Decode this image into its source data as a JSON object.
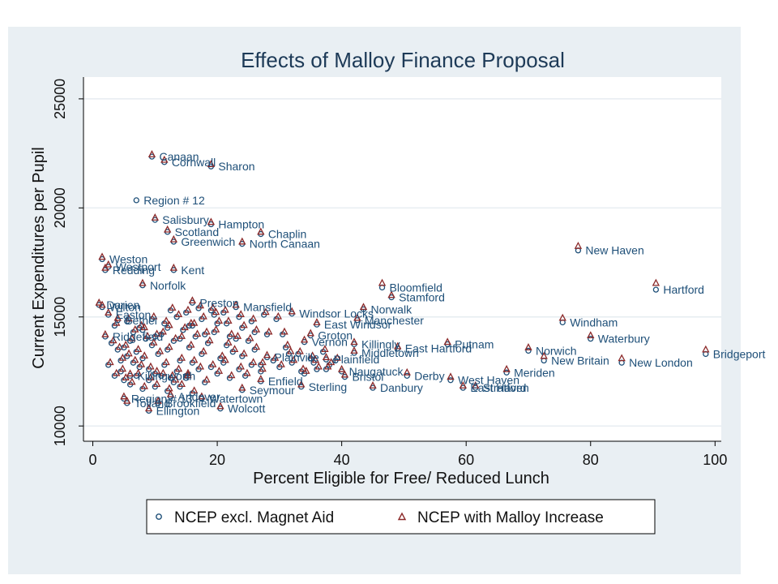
{
  "chart_data": {
    "type": "scatter",
    "title": "Effects of Malloy Finance Proposal",
    "xlabel": "Percent Eligible for Free/ Reduced Lunch",
    "ylabel": "Current Expenditures per Pupil",
    "xlim": [
      -1.5,
      101
    ],
    "ylim": [
      9300,
      26000
    ],
    "xticks": [
      0,
      20,
      40,
      60,
      80,
      100
    ],
    "yticks": [
      10000,
      15000,
      20000,
      25000
    ],
    "grid": "horizontal",
    "legend_position": "bottom",
    "colors": {
      "panel_bg": "#e9eff3",
      "plot_bg": "#ffffff",
      "series1": "#1e4f78",
      "series2": "#8c2a2a",
      "label": "#1e4f78",
      "title": "#1d3a57"
    },
    "series": [
      {
        "name": "NCEP excl. Magnet Aid",
        "marker": "circle"
      },
      {
        "name": "NCEP with Malloy Increase",
        "marker": "triangle"
      }
    ],
    "labeled_points": [
      {
        "label": "Canaan",
        "x": 9.5,
        "y1": 22350,
        "y2": 22450
      },
      {
        "label": "Cornwall",
        "x": 11.5,
        "y1": 22100,
        "y2": 22200
      },
      {
        "label": "Sharon",
        "x": 19,
        "y1": 21900,
        "y2": 22000
      },
      {
        "label": "Region # 12",
        "x": 7,
        "y1": 20350,
        "y2": null
      },
      {
        "label": "Salisbury",
        "x": 10,
        "y1": 19450,
        "y2": 19550
      },
      {
        "label": "Hampton",
        "x": 19,
        "y1": 19250,
        "y2": 19350
      },
      {
        "label": "Scotland",
        "x": 12,
        "y1": 18900,
        "y2": 19000
      },
      {
        "label": "Chaplin",
        "x": 27,
        "y1": 18800,
        "y2": 18900
      },
      {
        "label": "Greenwich",
        "x": 13,
        "y1": 18450,
        "y2": 18550
      },
      {
        "label": "North Canaan",
        "x": 24,
        "y1": 18350,
        "y2": 18450
      },
      {
        "label": "New Haven",
        "x": 78,
        "y1": 18050,
        "y2": 18250
      },
      {
        "label": "Weston",
        "x": 1.5,
        "y1": 17650,
        "y2": 17750
      },
      {
        "label": "Westport",
        "x": 2.5,
        "y1": 17300,
        "y2": 17400
      },
      {
        "label": "Redding",
        "x": 2,
        "y1": 17150,
        "y2": 17250
      },
      {
        "label": "Kent",
        "x": 13,
        "y1": 17150,
        "y2": 17250
      },
      {
        "label": "Norfolk",
        "x": 8,
        "y1": 16450,
        "y2": 16550
      },
      {
        "label": "Bloomfield",
        "x": 46.5,
        "y1": 16350,
        "y2": 16550
      },
      {
        "label": "Hartford",
        "x": 90.5,
        "y1": 16250,
        "y2": 16550
      },
      {
        "label": "Stamford",
        "x": 48,
        "y1": 15900,
        "y2": 16000
      },
      {
        "label": "Darien",
        "x": 1,
        "y1": 15550,
        "y2": 15650
      },
      {
        "label": "Wilton",
        "x": 1.5,
        "y1": 15450,
        "y2": 15550
      },
      {
        "label": "Preston",
        "x": 16,
        "y1": 15650,
        "y2": 15750
      },
      {
        "label": "Mansfield",
        "x": 23,
        "y1": 15450,
        "y2": 15550
      },
      {
        "label": "Norwalk",
        "x": 43.5,
        "y1": 15350,
        "y2": 15450
      },
      {
        "label": "Windsor Locks",
        "x": 32,
        "y1": 15150,
        "y2": 15250
      },
      {
        "label": "Manchester",
        "x": 42.5,
        "y1": 14850,
        "y2": 14950
      },
      {
        "label": "East Windsor",
        "x": 36,
        "y1": 14650,
        "y2": 14750
      },
      {
        "label": "Windham",
        "x": 75.5,
        "y1": 14750,
        "y2": 14950
      },
      {
        "label": "Waterbury",
        "x": 80,
        "y1": 14000,
        "y2": 14150
      },
      {
        "label": "Groton",
        "x": 35,
        "y1": 14150,
        "y2": 14250
      },
      {
        "label": "Vernon",
        "x": 34,
        "y1": 13850,
        "y2": 13950
      },
      {
        "label": "Killingly",
        "x": 42,
        "y1": 13750,
        "y2": 13850
      },
      {
        "label": "Putnam",
        "x": 57,
        "y1": 13750,
        "y2": 13850
      },
      {
        "label": "East Hartford",
        "x": 49,
        "y1": 13550,
        "y2": 13650
      },
      {
        "label": "Middletown",
        "x": 42,
        "y1": 13350,
        "y2": 13450
      },
      {
        "label": "Norwich",
        "x": 70,
        "y1": 13450,
        "y2": 13600
      },
      {
        "label": "New Britain",
        "x": 72.5,
        "y1": 13000,
        "y2": 13200
      },
      {
        "label": "New London",
        "x": 85,
        "y1": 12900,
        "y2": 13100
      },
      {
        "label": "Bridgeport",
        "x": 98.5,
        "y1": 13300,
        "y2": 13500
      },
      {
        "label": "Meriden",
        "x": 66.5,
        "y1": 12450,
        "y2": 12600
      },
      {
        "label": "Naugatuck",
        "x": 40,
        "y1": 12500,
        "y2": 12600
      },
      {
        "label": "Bristol",
        "x": 40.5,
        "y1": 12250,
        "y2": 12350
      },
      {
        "label": "Derby",
        "x": 50.5,
        "y1": 12300,
        "y2": 12450
      },
      {
        "label": "West Haven",
        "x": 57.5,
        "y1": 12100,
        "y2": 12250
      },
      {
        "label": "Danbury",
        "x": 45,
        "y1": 11750,
        "y2": 11850
      },
      {
        "label": "East Haven",
        "x": 59.5,
        "y1": 11750,
        "y2": 11850
      },
      {
        "label": "Stratford",
        "x": 61.5,
        "y1": 11750,
        "y2": 11850
      },
      {
        "label": "Sterling",
        "x": 33.5,
        "y1": 11800,
        "y2": 11900
      },
      {
        "label": "Seymour",
        "x": 24,
        "y1": 11650,
        "y2": 11750
      },
      {
        "label": "Watertown",
        "x": 17.5,
        "y1": 11250,
        "y2": 11350
      },
      {
        "label": "Wolcott",
        "x": 20.5,
        "y1": 10800,
        "y2": 10900
      },
      {
        "label": "Ellington",
        "x": 9,
        "y1": 10700,
        "y2": 10800
      },
      {
        "label": "Region # 13",
        "x": 5,
        "y1": 11250,
        "y2": 11350
      },
      {
        "label": "Tolland",
        "x": 5.5,
        "y1": 11050,
        "y2": 11150
      },
      {
        "label": "Brookfield",
        "x": 10.5,
        "y1": 11050,
        "y2": 11150
      },
      {
        "label": "Andover",
        "x": 12.5,
        "y1": 11350,
        "y2": 11450
      },
      {
        "label": "Ridgefield",
        "x": 2,
        "y1": 14100,
        "y2": 14200
      },
      {
        "label": "Easton",
        "x": 2.5,
        "y1": 15100,
        "y2": 15200
      },
      {
        "label": "Bethel",
        "x": 4,
        "y1": 14850,
        "y2": 14950
      },
      {
        "label": "Plainville",
        "x": 28,
        "y1": 13150,
        "y2": 13250
      },
      {
        "label": "Plainfield",
        "x": 37.5,
        "y1": 13050,
        "y2": 13150
      },
      {
        "label": "Enfield",
        "x": 27,
        "y1": 12050,
        "y2": 12150
      },
      {
        "label": "Killingworth",
        "x": 6,
        "y1": 12300,
        "y2": 12400
      }
    ],
    "cluster_points": [
      [
        3,
        13800
      ],
      [
        4,
        13500
      ],
      [
        5,
        13600
      ],
      [
        5.5,
        13200
      ],
      [
        6,
        13900
      ],
      [
        6.5,
        12900
      ],
      [
        7,
        13400
      ],
      [
        7.5,
        12700
      ],
      [
        8,
        13100
      ],
      [
        8.5,
        14000
      ],
      [
        9,
        12600
      ],
      [
        9.5,
        13700
      ],
      [
        10,
        12400
      ],
      [
        10.5,
        13300
      ],
      [
        11,
        14200
      ],
      [
        11.5,
        12800
      ],
      [
        12,
        13500
      ],
      [
        12.5,
        12200
      ],
      [
        13,
        13900
      ],
      [
        13.5,
        12500
      ],
      [
        14,
        13000
      ],
      [
        14.5,
        14400
      ],
      [
        15,
        12300
      ],
      [
        15.5,
        13600
      ],
      [
        16,
        12900
      ],
      [
        16.5,
        14100
      ],
      [
        17,
        12600
      ],
      [
        17.5,
        13300
      ],
      [
        18,
        12000
      ],
      [
        18.5,
        13800
      ],
      [
        19,
        12700
      ],
      [
        19.5,
        14300
      ],
      [
        20,
        12400
      ],
      [
        20.5,
        13100
      ],
      [
        21,
        12900
      ],
      [
        21.5,
        13700
      ],
      [
        22,
        12200
      ],
      [
        22.5,
        13400
      ],
      [
        23,
        14000
      ],
      [
        23.5,
        12600
      ],
      [
        24,
        13200
      ],
      [
        24.5,
        12300
      ],
      [
        25,
        13900
      ],
      [
        25.5,
        12800
      ],
      [
        26,
        13500
      ],
      [
        27,
        12500
      ],
      [
        28,
        14200
      ],
      [
        29,
        13000
      ],
      [
        30,
        12700
      ],
      [
        31,
        13600
      ],
      [
        32,
        12900
      ],
      [
        33,
        13300
      ],
      [
        34,
        12400
      ],
      [
        35,
        13100
      ],
      [
        36,
        12600
      ],
      [
        37,
        13400
      ],
      [
        38,
        12800
      ],
      [
        39,
        13000
      ],
      [
        4.5,
        12500
      ],
      [
        5,
        12100
      ],
      [
        6,
        11900
      ],
      [
        7,
        12300
      ],
      [
        8,
        11700
      ],
      [
        9,
        12100
      ],
      [
        10,
        11800
      ],
      [
        11,
        12300
      ],
      [
        12,
        11600
      ],
      [
        13,
        12000
      ],
      [
        14,
        11800
      ],
      [
        15,
        12200
      ],
      [
        16,
        11500
      ],
      [
        3.5,
        14600
      ],
      [
        5.5,
        14800
      ],
      [
        7.5,
        14500
      ],
      [
        9.5,
        14900
      ],
      [
        11.5,
        14700
      ],
      [
        13.5,
        15000
      ],
      [
        15.5,
        14600
      ],
      [
        17.5,
        14900
      ],
      [
        19.5,
        15100
      ],
      [
        21.5,
        14700
      ],
      [
        23.5,
        15000
      ],
      [
        25.5,
        14800
      ],
      [
        27.5,
        15100
      ],
      [
        29.5,
        14900
      ],
      [
        8,
        14400
      ],
      [
        10,
        14100
      ],
      [
        12,
        14500
      ],
      [
        14,
        14000
      ],
      [
        16,
        14600
      ],
      [
        18,
        14200
      ],
      [
        20,
        14700
      ],
      [
        22,
        14100
      ],
      [
        24,
        14500
      ],
      [
        26,
        14300
      ],
      [
        2.5,
        12800
      ],
      [
        3.5,
        12300
      ],
      [
        4.5,
        13000
      ],
      [
        6.5,
        14300
      ],
      [
        12.5,
        15300
      ],
      [
        15,
        15200
      ],
      [
        17,
        15400
      ],
      [
        19,
        15300
      ],
      [
        21,
        15200
      ],
      [
        30.5,
        14200
      ],
      [
        31.5,
        13300
      ],
      [
        33.5,
        12500
      ],
      [
        35.5,
        12900
      ],
      [
        37.5,
        12600
      ],
      [
        27,
        12800
      ]
    ]
  },
  "legend": {
    "item1": "NCEP excl. Magnet Aid",
    "item2": "NCEP with Malloy Increase"
  }
}
